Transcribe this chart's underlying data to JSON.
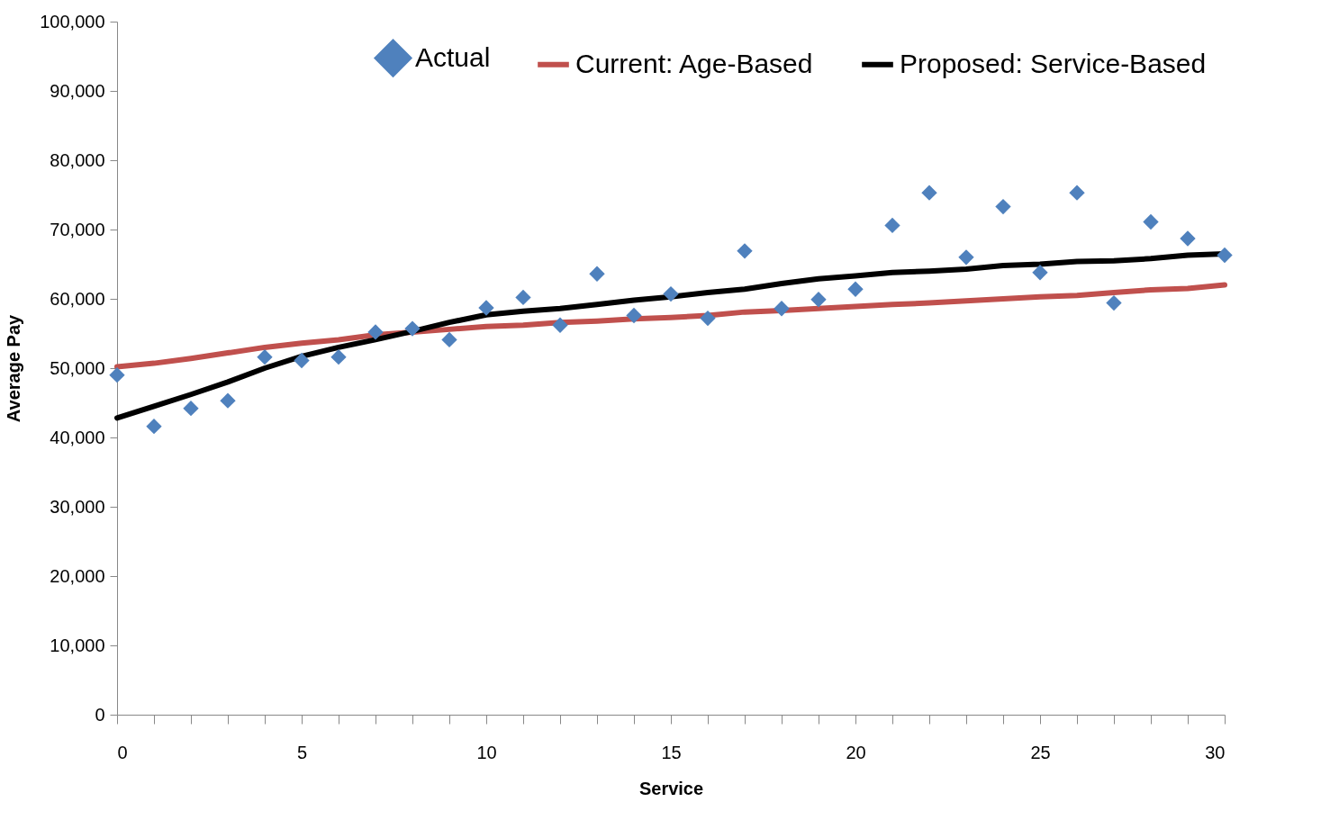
{
  "chart_data": {
    "type": "line",
    "xlabel": "Service",
    "ylabel": "Average Pay",
    "xlim": [
      0,
      30
    ],
    "ylim": [
      0,
      100000
    ],
    "xticks": [
      0,
      {
        "value": 1,
        "label": null
      },
      {
        "value": 2,
        "label": null
      },
      {
        "value": 3,
        "label": null
      },
      {
        "value": 4,
        "label": null
      },
      5,
      {
        "value": 6,
        "label": null
      },
      {
        "value": 7,
        "label": null
      },
      {
        "value": 8,
        "label": null
      },
      {
        "value": 9,
        "label": null
      },
      10,
      {
        "value": 11,
        "label": null
      },
      {
        "value": 12,
        "label": null
      },
      {
        "value": 13,
        "label": null
      },
      {
        "value": 14,
        "label": null
      },
      15,
      {
        "value": 16,
        "label": null
      },
      {
        "value": 17,
        "label": null
      },
      {
        "value": 18,
        "label": null
      },
      {
        "value": 19,
        "label": null
      },
      20,
      {
        "value": 21,
        "label": null
      },
      {
        "value": 22,
        "label": null
      },
      {
        "value": 23,
        "label": null
      },
      {
        "value": 24,
        "label": null
      },
      25,
      {
        "value": 26,
        "label": null
      },
      {
        "value": 27,
        "label": null
      },
      {
        "value": 28,
        "label": null
      },
      {
        "value": 29,
        "label": null
      },
      30
    ],
    "yticks": [
      0,
      {
        "value": 10000,
        "label": "10,000"
      },
      {
        "value": 20000,
        "label": "20,000"
      },
      {
        "value": 30000,
        "label": "30,000"
      },
      {
        "value": 40000,
        "label": "40,000"
      },
      {
        "value": 50000,
        "label": "50,000"
      },
      {
        "value": 60000,
        "label": "60,000"
      },
      {
        "value": 70000,
        "label": "70,000"
      },
      {
        "value": 80000,
        "label": "80,000"
      },
      {
        "value": 90000,
        "label": "90,000"
      },
      {
        "value": 100000,
        "label": "100,000"
      }
    ],
    "grid": false,
    "legend": "top right",
    "x": [
      0,
      1,
      2,
      3,
      4,
      5,
      6,
      7,
      8,
      9,
      10,
      11,
      12,
      13,
      14,
      15,
      16,
      17,
      18,
      19,
      20,
      21,
      22,
      23,
      24,
      25,
      26,
      27,
      28,
      29,
      30
    ],
    "series": [
      {
        "name": "Actual",
        "type": "scatter",
        "marker": "diamond",
        "color": "#4f81bd",
        "values": [
          49000,
          41600,
          44200,
          45300,
          51600,
          51100,
          51600,
          55200,
          55700,
          54100,
          58700,
          60200,
          56200,
          63600,
          57600,
          60700,
          57200,
          66900,
          58600,
          59900,
          61400,
          70600,
          75300,
          66000,
          73300,
          63800,
          75300,
          59400,
          71100,
          68700,
          66300
        ]
      },
      {
        "name": "Current: Age-Based",
        "marker": "none",
        "line_style": "solid",
        "color": "#c0504d",
        "values": [
          50200,
          50700,
          51400,
          52200,
          53000,
          53600,
          54100,
          54800,
          55200,
          55600,
          56000,
          56200,
          56600,
          56800,
          57100,
          57300,
          57600,
          58100,
          58300,
          58600,
          58900,
          59200,
          59400,
          59700,
          60000,
          60300,
          60500,
          60900,
          61300,
          61500,
          62000
        ]
      },
      {
        "name": "Proposed: Service-Based",
        "marker": "none",
        "line_style": "solid",
        "color": "#000000",
        "values": [
          42800,
          44500,
          46200,
          48000,
          50000,
          51700,
          53000,
          54100,
          55300,
          56600,
          57700,
          58200,
          58600,
          59200,
          59800,
          60300,
          60900,
          61400,
          62200,
          62900,
          63300,
          63800,
          64000,
          64300,
          64800,
          65000,
          65400,
          65500,
          65800,
          66300,
          66500
        ]
      }
    ]
  }
}
